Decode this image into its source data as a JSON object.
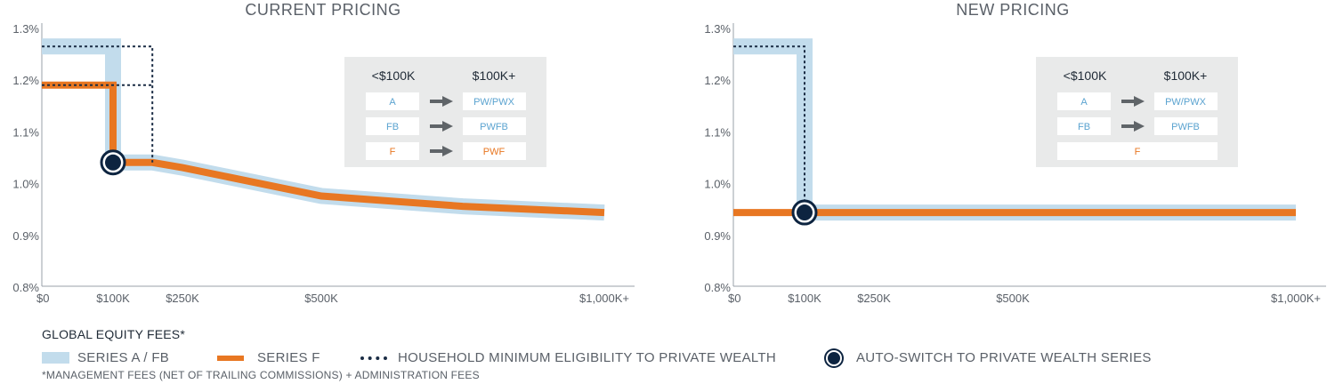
{
  "chart_data": [
    {
      "type": "line",
      "title": "CURRENT PRICING",
      "x_tick_labels": [
        "$0",
        "$100K",
        "$250K",
        "$500K",
        "$1,000K+"
      ],
      "y_tick_labels": [
        "1.3%",
        "1.2%",
        "1.1%",
        "1.0%",
        "0.9%",
        "0.8%"
      ],
      "ylim": [
        0.8,
        1.3
      ],
      "series": [
        {
          "name": "SERIES A / FB",
          "points": [
            [
              0,
              1.265
            ],
            [
              100,
              1.265
            ],
            [
              100,
              1.04
            ],
            [
              185,
              1.04
            ],
            [
              250,
              1.03
            ],
            [
              500,
              0.975
            ],
            [
              750,
              0.955
            ],
            [
              1000,
              0.943
            ]
          ]
        },
        {
          "name": "SERIES F",
          "points": [
            [
              0,
              1.19
            ],
            [
              100,
              1.19
            ],
            [
              100,
              1.04
            ],
            [
              185,
              1.04
            ],
            [
              250,
              1.03
            ],
            [
              500,
              0.975
            ],
            [
              750,
              0.955
            ],
            [
              1000,
              0.943
            ]
          ]
        },
        {
          "name": "HOUSEHOLD MINIMUM ELIGIBILITY TO PRIVATE WEALTH",
          "points": [
            [
              0,
              1.265
            ],
            [
              185,
              1.265
            ],
            [
              185,
              1.04
            ]
          ]
        },
        {
          "name": "HOUSEHOLD MINIMUM ELIGIBILITY TO PRIVATE WEALTH",
          "points": [
            [
              0,
              1.19
            ],
            [
              185,
              1.19
            ]
          ]
        }
      ],
      "marker": {
        "name": "AUTO-SWITCH TO PRIVATE WEALTH SERIES",
        "x": 100,
        "y": 1.04
      },
      "table": {
        "headers": [
          "<$100K",
          "$100K+"
        ],
        "rows": [
          {
            "from": "A",
            "to": "PW/PWX",
            "color": "#5ba3d0"
          },
          {
            "from": "FB",
            "to": "PWFB",
            "color": "#5ba3d0"
          },
          {
            "from": "F",
            "to": "PWF",
            "color": "#e87722"
          }
        ]
      }
    },
    {
      "type": "line",
      "title": "NEW PRICING",
      "x_tick_labels": [
        "$0",
        "$100K",
        "$250K",
        "$500K",
        "$1,000K+"
      ],
      "y_tick_labels": [
        "1.3%",
        "1.2%",
        "1.1%",
        "1.0%",
        "0.9%",
        "0.8%"
      ],
      "ylim": [
        0.8,
        1.3
      ],
      "series": [
        {
          "name": "SERIES A / FB",
          "points": [
            [
              0,
              1.265
            ],
            [
              100,
              1.265
            ],
            [
              100,
              0.943
            ],
            [
              1000,
              0.943
            ]
          ]
        },
        {
          "name": "SERIES F",
          "points": [
            [
              0,
              0.943
            ],
            [
              1000,
              0.943
            ]
          ]
        },
        {
          "name": "HOUSEHOLD MINIMUM ELIGIBILITY TO PRIVATE WEALTH",
          "points": [
            [
              0,
              1.265
            ],
            [
              100,
              1.265
            ],
            [
              100,
              0.943
            ]
          ]
        }
      ],
      "marker": {
        "name": "AUTO-SWITCH TO PRIVATE WEALTH SERIES",
        "x": 100,
        "y": 0.943
      },
      "table": {
        "headers": [
          "<$100K",
          "$100K+"
        ],
        "rows": [
          {
            "from": "A",
            "to": "PW/PWX",
            "color": "#5ba3d0"
          },
          {
            "from": "FB",
            "to": "PWFB",
            "color": "#5ba3d0"
          },
          {
            "from": "",
            "to": "",
            "merged": "F",
            "color": "#e87722"
          }
        ]
      }
    }
  ],
  "legend": {
    "title": "GLOBAL EQUITY FEES*",
    "items": [
      "SERIES A / FB",
      "SERIES F",
      "HOUSEHOLD MINIMUM ELIGIBILITY TO PRIVATE WEALTH",
      "AUTO-SWITCH TO PRIVATE WEALTH SERIES"
    ],
    "footnote": "*MANAGEMENT FEES (NET OF TRAILING COMMISSIONS) + ADMINISTRATION FEES"
  },
  "colors": {
    "series_af": "#c2dcec",
    "series_f": "#e87722",
    "eligibility": "#1b2d45",
    "marker": "#0d2440",
    "table_bg": "#e9eaea",
    "axis": "#9aa1a8"
  }
}
